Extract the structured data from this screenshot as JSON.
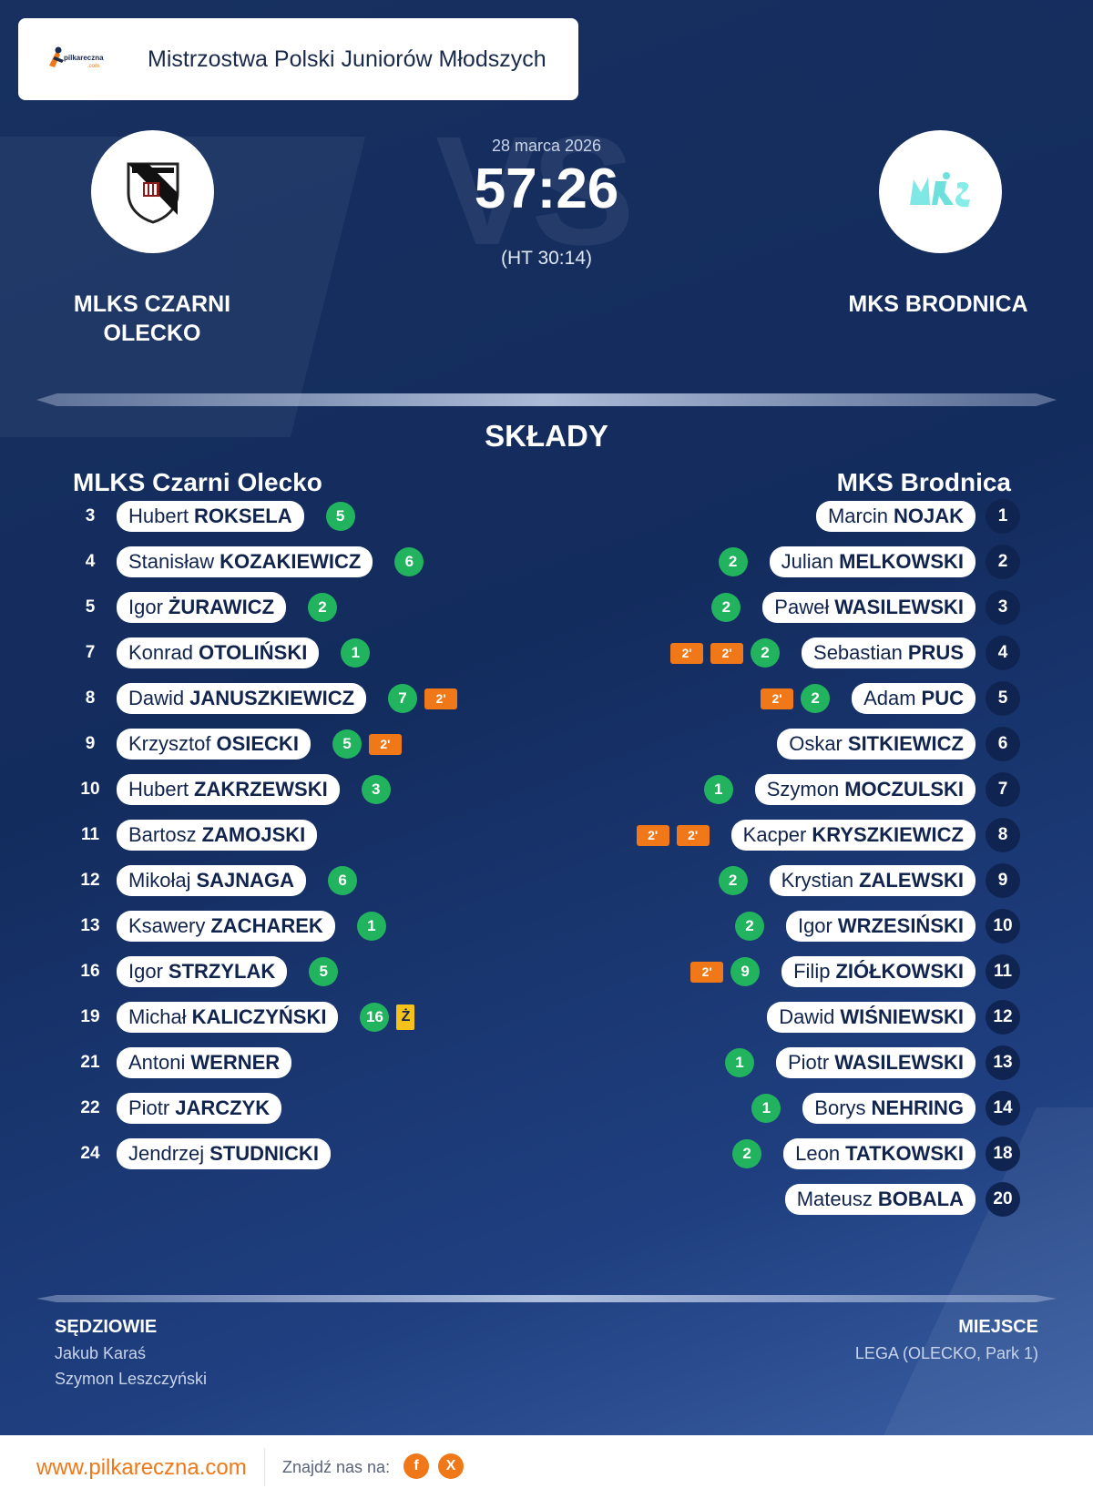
{
  "competition": {
    "brand": "pilkareczna.com",
    "title": "Mistrzostwa Polski Juniorów Młodszych"
  },
  "match": {
    "date": "28 marca 2026",
    "score": "57:26",
    "halftime": "(HT 30:14)",
    "vs_watermark": "VS",
    "home_team": "MLKS CZARNI OLECKO",
    "away_team": "MKS BRODNICA"
  },
  "lineups": {
    "title": "SKŁADY",
    "home": {
      "name": "MLKS Czarni Olecko",
      "players": [
        {
          "number": "3",
          "first": "Hubert",
          "last": "ROKSELA",
          "goals": "5"
        },
        {
          "number": "4",
          "first": "Stanisław",
          "last": "KOZAKIEWICZ",
          "goals": "6"
        },
        {
          "number": "5",
          "first": "Igor",
          "last": "ŻURAWICZ",
          "goals": "2"
        },
        {
          "number": "7",
          "first": "Konrad",
          "last": "OTOLIŃSKI",
          "goals": "1"
        },
        {
          "number": "8",
          "first": "Dawid",
          "last": "JANUSZKIEWICZ",
          "goals": "7",
          "suspensions": [
            "2'"
          ]
        },
        {
          "number": "9",
          "first": "Krzysztof",
          "last": "OSIECKI",
          "goals": "5",
          "suspensions": [
            "2'"
          ]
        },
        {
          "number": "10",
          "first": "Hubert",
          "last": "ZAKRZEWSKI",
          "goals": "3"
        },
        {
          "number": "11",
          "first": "Bartosz",
          "last": "ZAMOJSKI"
        },
        {
          "number": "12",
          "first": "Mikołaj",
          "last": "SAJNAGA",
          "goals": "6"
        },
        {
          "number": "13",
          "first": "Ksawery",
          "last": "ZACHAREK",
          "goals": "1"
        },
        {
          "number": "16",
          "first": "Igor",
          "last": "STRZYLAK",
          "goals": "5"
        },
        {
          "number": "19",
          "first": "Michał",
          "last": "KALICZYŃSKI",
          "goals": "16",
          "yellow": "Ż"
        },
        {
          "number": "21",
          "first": "Antoni",
          "last": "WERNER"
        },
        {
          "number": "22",
          "first": "Piotr",
          "last": "JARCZYK"
        },
        {
          "number": "24",
          "first": "Jendrzej",
          "last": "STUDNICKI"
        }
      ]
    },
    "away": {
      "name": "MKS Brodnica",
      "players": [
        {
          "number": "1",
          "first": "Marcin",
          "last": "NOJAK"
        },
        {
          "number": "2",
          "first": "Julian",
          "last": "MELKOWSKI",
          "goals": "2"
        },
        {
          "number": "3",
          "first": "Paweł",
          "last": "WASILEWSKI",
          "goals": "2"
        },
        {
          "number": "4",
          "first": "Sebastian",
          "last": "PRUS",
          "goals": "2",
          "suspensions": [
            "2'",
            "2'"
          ]
        },
        {
          "number": "5",
          "first": "Adam",
          "last": "PUC",
          "goals": "2",
          "suspensions": [
            "2'"
          ]
        },
        {
          "number": "6",
          "first": "Oskar",
          "last": "SITKIEWICZ"
        },
        {
          "number": "7",
          "first": "Szymon",
          "last": "MOCZULSKI",
          "goals": "1"
        },
        {
          "number": "8",
          "first": "Kacper",
          "last": "KRYSZKIEWICZ",
          "suspensions": [
            "2'",
            "2'"
          ]
        },
        {
          "number": "9",
          "first": "Krystian",
          "last": "ZALEWSKI",
          "goals": "2"
        },
        {
          "number": "10",
          "first": "Igor",
          "last": "WRZESIŃSKI",
          "goals": "2"
        },
        {
          "number": "11",
          "first": "Filip",
          "last": "ZIÓŁKOWSKI",
          "goals": "9",
          "suspensions": [
            "2'"
          ]
        },
        {
          "number": "12",
          "first": "Dawid",
          "last": "WIŚNIEWSKI"
        },
        {
          "number": "13",
          "first": "Piotr",
          "last": "WASILEWSKI",
          "goals": "1"
        },
        {
          "number": "14",
          "first": "Borys",
          "last": "NEHRING",
          "goals": "1"
        },
        {
          "number": "18",
          "first": "Leon",
          "last": "TATKOWSKI",
          "goals": "2"
        },
        {
          "number": "20",
          "first": "Mateusz",
          "last": "BOBALA"
        }
      ]
    }
  },
  "officials": {
    "label": "SĘDZIOWIE",
    "referees": [
      "Jakub Karaś",
      "Szymon Leszczyński"
    ]
  },
  "venue": {
    "label": "MIEJSCE",
    "value": "LEGA (OLECKO, Park 1)"
  },
  "footer": {
    "url": "www.pilkareczna.com",
    "find_us": "Znajdź nas na:",
    "facebook_icon": "f",
    "x_icon": "X"
  },
  "colors": {
    "background": "#132c5e",
    "goals": "#22b35f",
    "suspension": "#f07818",
    "yellow_card": "#f5c21b",
    "away_number": "#0f2450",
    "accent": "#f07818"
  }
}
